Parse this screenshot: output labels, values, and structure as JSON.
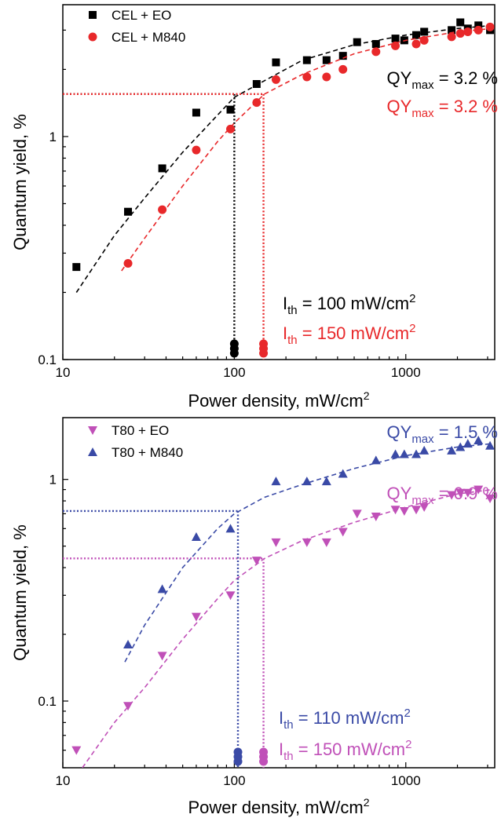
{
  "chart_data": [
    {
      "type": "scatter",
      "x_scale": "log",
      "y_scale": "log",
      "xlim": [
        10,
        3300
      ],
      "ylim": [
        0.1,
        3.9
      ],
      "xlabel": "Power density, mW/cm",
      "xlabel_sup": "2",
      "ylabel": "Quantum yield, %",
      "x_ticks": [
        {
          "value": 10,
          "label": "10"
        },
        {
          "value": 100,
          "label": "100"
        },
        {
          "value": 1000,
          "label": "1000"
        }
      ],
      "y_ticks": [
        {
          "value": 0.1,
          "label": "0.1"
        },
        {
          "value": 1,
          "label": "1"
        }
      ],
      "grid": false,
      "legend_position": "top-left",
      "series": [
        {
          "name": "CEL + EO",
          "marker": "square",
          "color": "#000000",
          "x": [
            12,
            24,
            38,
            60,
            95,
            135,
            175,
            265,
            345,
            430,
            520,
            670,
            870,
            980,
            1150,
            1280,
            1850,
            2080,
            2300,
            2650,
            3100
          ],
          "y": [
            0.26,
            0.46,
            0.72,
            1.28,
            1.32,
            1.72,
            2.15,
            2.2,
            2.2,
            2.3,
            2.65,
            2.6,
            2.75,
            2.7,
            2.85,
            2.95,
            3.0,
            3.25,
            3.05,
            3.15,
            3.0
          ],
          "fit": {
            "x": [
              12,
              20,
              30,
              50,
              80,
              100,
              150,
              250,
              500,
              1000,
              2000,
              3200
            ],
            "y": [
              0.2,
              0.36,
              0.53,
              0.85,
              1.25,
              1.5,
              1.78,
              2.2,
              2.58,
              2.85,
              3.05,
              3.15
            ]
          },
          "threshold": {
            "x": 100,
            "y": 1.55,
            "label_main": "I",
            "label_sub": "th",
            "label_rest": " = 100 mW/cm",
            "label_sup": "2"
          },
          "qy_max": {
            "main": "QY",
            "sub": "max",
            "rest": " = 3.2 %"
          }
        },
        {
          "name": "CEL + M840",
          "marker": "circle",
          "color": "#e8282a",
          "x": [
            24,
            38,
            60,
            95,
            135,
            175,
            265,
            345,
            430,
            670,
            870,
            1150,
            1280,
            1850,
            2080,
            2300,
            2650,
            3100
          ],
          "y": [
            0.27,
            0.47,
            0.87,
            1.08,
            1.42,
            1.8,
            1.85,
            1.85,
            2.0,
            2.4,
            2.55,
            2.6,
            2.7,
            2.8,
            2.9,
            2.95,
            3.0,
            3.1
          ],
          "fit": {
            "x": [
              22,
              30,
              50,
              80,
              100,
              150,
              250,
              500,
              1000,
              2000,
              3200
            ],
            "y": [
              0.25,
              0.35,
              0.6,
              0.95,
              1.15,
              1.55,
              1.9,
              2.35,
              2.7,
              2.95,
              3.05
            ]
          },
          "threshold": {
            "x": 148,
            "y": 1.55,
            "label_main": "I",
            "label_sub": "th",
            "label_rest": " = 150 mW/cm",
            "label_sup": "2"
          },
          "qy_max": {
            "main": "QY",
            "sub": "max",
            "rest": " = 3.2 %"
          }
        }
      ]
    },
    {
      "type": "scatter",
      "x_scale": "log",
      "y_scale": "log",
      "xlim": [
        10,
        3300
      ],
      "ylim": [
        0.05,
        1.9
      ],
      "xlabel": "Power density, mW/cm",
      "xlabel_sup": "2",
      "ylabel": "Quantum yield, %",
      "x_ticks": [
        {
          "value": 10,
          "label": "10"
        },
        {
          "value": 100,
          "label": "100"
        },
        {
          "value": 1000,
          "label": "1000"
        }
      ],
      "y_ticks": [
        {
          "value": 0.1,
          "label": "0.1"
        },
        {
          "value": 1,
          "label": "1"
        }
      ],
      "grid": false,
      "legend_position": "top-left",
      "series": [
        {
          "name": "T80 + EO",
          "marker": "triangle-down",
          "color": "#c050b8",
          "x": [
            12,
            24,
            38,
            60,
            95,
            135,
            175,
            265,
            345,
            430,
            520,
            670,
            870,
            980,
            1150,
            1280,
            1850,
            2080,
            2300,
            2650,
            3100
          ],
          "y": [
            0.06,
            0.095,
            0.16,
            0.24,
            0.3,
            0.43,
            0.52,
            0.52,
            0.52,
            0.58,
            0.7,
            0.68,
            0.73,
            0.72,
            0.73,
            0.75,
            0.85,
            0.87,
            0.87,
            0.9,
            0.82
          ],
          "fit": {
            "x": [
              13,
              20,
              30,
              50,
              80,
              100,
              150,
              250,
              500,
              1000,
              2000,
              3200
            ],
            "y": [
              0.05,
              0.08,
              0.115,
              0.19,
              0.29,
              0.35,
              0.44,
              0.53,
              0.64,
              0.75,
              0.86,
              0.9
            ]
          },
          "threshold": {
            "x": 148,
            "y": 0.44,
            "label_main": "I",
            "label_sub": "th",
            "label_rest": " = 150 mW/cm",
            "label_sup": "2"
          },
          "qy_max": {
            "main": "QY",
            "sub": "max",
            "rest": " = 0.9 %"
          }
        },
        {
          "name": "T80 + M840",
          "marker": "triangle-up",
          "color": "#3a4aa6",
          "x": [
            24,
            38,
            60,
            95,
            175,
            265,
            345,
            430,
            670,
            870,
            980,
            1150,
            1280,
            1850,
            2080,
            2300,
            2650,
            3100
          ],
          "y": [
            0.18,
            0.32,
            0.55,
            0.6,
            0.98,
            0.98,
            0.98,
            1.06,
            1.22,
            1.3,
            1.3,
            1.3,
            1.35,
            1.35,
            1.4,
            1.45,
            1.5,
            1.42
          ],
          "fit": {
            "x": [
              23,
              30,
              50,
              80,
              100,
              150,
              250,
              500,
              1000,
              2000,
              3200
            ],
            "y": [
              0.15,
              0.22,
              0.4,
              0.6,
              0.7,
              0.83,
              0.95,
              1.12,
              1.28,
              1.4,
              1.45
            ]
          },
          "threshold": {
            "x": 105,
            "y": 0.72,
            "label_main": "I",
            "label_sub": "th",
            "label_rest": " = 110 mW/cm",
            "label_sup": "2"
          },
          "qy_max": {
            "main": "QY",
            "sub": "max",
            "rest": " = 1.5 %"
          }
        }
      ]
    }
  ]
}
